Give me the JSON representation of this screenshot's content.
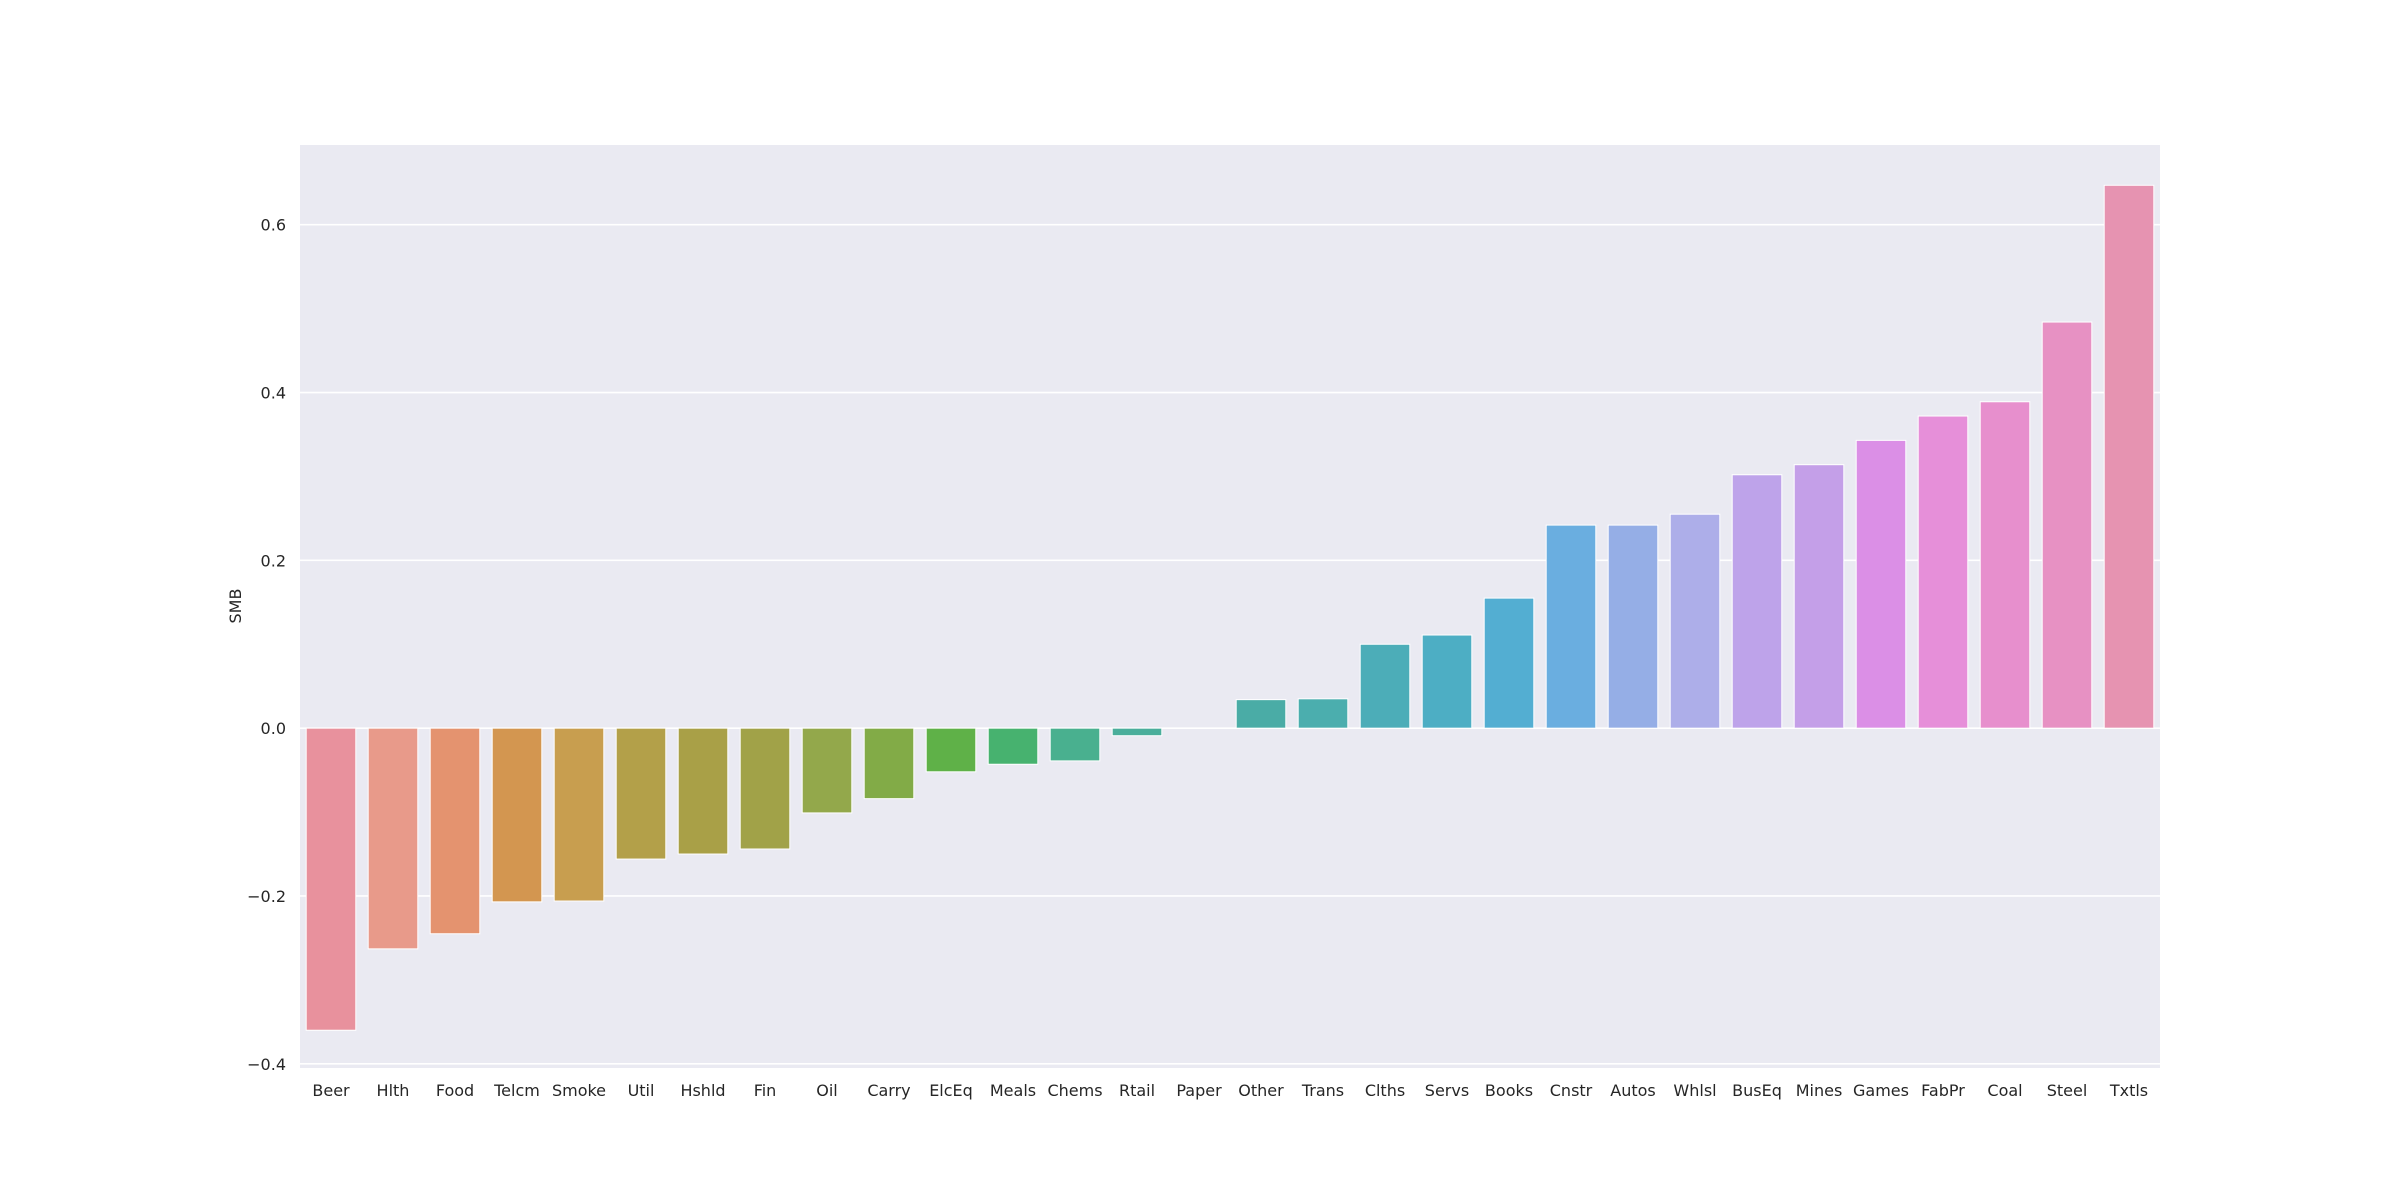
{
  "chart_data": {
    "type": "bar",
    "title": "",
    "xlabel": "",
    "ylabel": "SMB",
    "ylim": [
      -0.405,
      0.695
    ],
    "yticks": [
      -0.4,
      -0.2,
      0.0,
      0.2,
      0.4,
      0.6
    ],
    "ytick_labels": [
      "−0.4",
      "−0.2",
      "0.0",
      "0.2",
      "0.4",
      "0.6"
    ],
    "grid": true,
    "background": "#eaeaf2",
    "categories": [
      "Beer",
      "Hlth",
      "Food",
      "Telcm",
      "Smoke",
      "Util",
      "Hshld",
      "Fin",
      "Oil",
      "Carry",
      "ElcEq",
      "Meals",
      "Chems",
      "Rtail",
      "Paper",
      "Other",
      "Trans",
      "Clths",
      "Servs",
      "Books",
      "Cnstr",
      "Autos",
      "Whlsl",
      "BusEq",
      "Mines",
      "Games",
      "FabPr",
      "Coal",
      "Steel",
      "Txtls"
    ],
    "values": [
      -0.36,
      -0.263,
      -0.245,
      -0.207,
      -0.206,
      -0.156,
      -0.15,
      -0.144,
      -0.101,
      -0.084,
      -0.052,
      -0.043,
      -0.039,
      -0.009,
      0.0,
      0.034,
      0.035,
      0.1,
      0.111,
      0.155,
      0.242,
      0.242,
      0.255,
      0.302,
      0.314,
      0.343,
      0.372,
      0.389,
      0.484,
      0.647
    ],
    "colors": [
      "#e8919d",
      "#e89a8a",
      "#e4936f",
      "#d39650",
      "#c89e4f",
      "#b3a049",
      "#a9a047",
      "#a1a248",
      "#93a84b",
      "#82ab47",
      "#5fb148",
      "#47b26f",
      "#49b08f",
      "#4aae9b",
      "#4aad9f",
      "#4aaca6",
      "#4baeae",
      "#4cadb8",
      "#4daec4",
      "#53aed2",
      "#6aaee0",
      "#95aee6",
      "#adaee9",
      "#bea3ea",
      "#c49fe8",
      "#db8fe6",
      "#e68fd9",
      "#e78fcd",
      "#e791c3",
      "#e693b1"
    ]
  }
}
